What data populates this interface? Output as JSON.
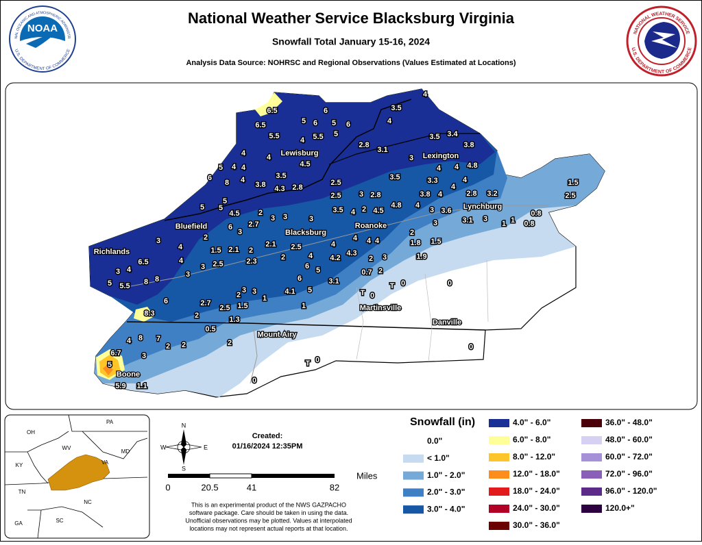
{
  "header": {
    "title": "National Weather Service Blacksburg Virginia",
    "subtitle": "Snowfall Total January 15-16, 2024",
    "source": "Analysis Data Source: NOHRSC and Regional Observations (Values Estimated at Locations)"
  },
  "logos": {
    "noaa": {
      "name": "NOAA",
      "ring_top": "NATIONAL OCEANIC AND ATMOSPHERIC ADMINISTRATION",
      "ring_bottom": "U.S. DEPARTMENT OF COMMERCE"
    },
    "nws": {
      "ring_top": "NATIONAL WEATHER SERVICE",
      "ring_bottom": "U.S. DEPARTMENT OF COMMERCE"
    }
  },
  "map": {
    "cities": [
      "Lewisburg",
      "Lexington",
      "Lynchburg",
      "Bluefield",
      "Blacksburg",
      "Roanoke",
      "Richlands",
      "Martinsville",
      "Danville",
      "Mount Airy",
      "Boone"
    ],
    "station_values": [
      "6.5",
      "6.5",
      "6",
      "5",
      "6",
      "5",
      "6",
      "3.5",
      "4",
      "4",
      "5.5",
      "4",
      "5.5",
      "5",
      "4",
      "4",
      "4.5",
      "2.8",
      "3.1",
      "3",
      "3.5",
      "3.4",
      "3.8",
      "5",
      "4",
      "4",
      "6",
      "8",
      "4",
      "3.5",
      "3.8",
      "4.3",
      "2.8",
      "2.5",
      "3.5",
      "3.3",
      "4",
      "4",
      "4.8",
      "4",
      "4",
      "2.8",
      "3.2",
      "1.5",
      "2.5",
      "2.5",
      "3",
      "2.8",
      "3.8",
      "4",
      "5",
      "5",
      "5",
      "4.5",
      "2",
      "3",
      "3",
      "3",
      "3.5",
      "4",
      "2",
      "4.5",
      "4.8",
      "4",
      "3",
      "3.6",
      "0.8",
      "3.1",
      "3",
      "1",
      "1",
      "0.8",
      "6",
      "2.7",
      "3",
      "3",
      "3",
      "2",
      "1.5",
      "2.1",
      "2",
      "2.1",
      "2.5",
      "4",
      "4",
      "4",
      "4",
      "2",
      "1.8",
      "1.5",
      "4",
      "4",
      "6.5",
      "4",
      "3",
      "2.5",
      "2.3",
      "2",
      "4",
      "4.2",
      "4.3",
      "2",
      "3",
      "1.9",
      "3",
      "6",
      "5",
      "0.7",
      "2",
      "5",
      "5.5",
      "8",
      "8",
      "3",
      "6",
      "3.1",
      "T",
      "0",
      "0",
      "3",
      "3",
      "4.1",
      "5",
      "2",
      "1",
      "T",
      "0",
      "6",
      "2.7",
      "2.5",
      "1.5",
      "1",
      "8.3",
      "2",
      "1.3",
      "0.5",
      "4",
      "8",
      "7",
      "2",
      "2",
      "2",
      "0",
      "6.7",
      "3",
      "5",
      "T",
      "0",
      "0",
      "5.9",
      "1.1"
    ]
  },
  "legend": {
    "title": "Snowfall (in)",
    "items": [
      {
        "label": "0.0\"",
        "color": "#ffffff"
      },
      {
        "label": "< 1.0\"",
        "color": "#c6dbef"
      },
      {
        "label": "1.0\" - 2.0\"",
        "color": "#74a9d8"
      },
      {
        "label": "2.0\" - 3.0\"",
        "color": "#3f80c4"
      },
      {
        "label": "3.0\" - 4.0\"",
        "color": "#1658a6"
      },
      {
        "label": "4.0\" - 6.0\"",
        "color": "#1a2f96"
      },
      {
        "label": "6.0\" - 8.0\"",
        "color": "#ffff99"
      },
      {
        "label": "8.0\" - 12.0\"",
        "color": "#fec52a"
      },
      {
        "label": "12.0\" - 18.0\"",
        "color": "#fd8d1c"
      },
      {
        "label": "18.0\" - 24.0\"",
        "color": "#e31a1c"
      },
      {
        "label": "24.0\" - 30.0\"",
        "color": "#b10026"
      },
      {
        "label": "30.0\" - 36.0\"",
        "color": "#6b0000"
      },
      {
        "label": "36.0\" - 48.0\"",
        "color": "#4a0008"
      },
      {
        "label": "48.0\" - 60.0\"",
        "color": "#d6d0f2"
      },
      {
        "label": "60.0\" - 72.0\"",
        "color": "#a690d8"
      },
      {
        "label": "72.0\" - 96.0\"",
        "color": "#8a5fb7"
      },
      {
        "label": "96.0\" - 120.0\"",
        "color": "#5c2a88"
      },
      {
        "label": "120.0+\"",
        "color": "#2d0040"
      }
    ]
  },
  "created": {
    "label": "Created:",
    "datetime": "01/16/2024 12:35PM"
  },
  "compass": {
    "n": "N",
    "s": "S",
    "e": "E",
    "w": "W"
  },
  "scale": {
    "ticks": [
      "0",
      "20.5",
      "41",
      "82"
    ],
    "unit": "Miles"
  },
  "disclaimer": [
    "This is an experimental product of the NWS GAZPACHO",
    "software package. Care should be taken in using the data.",
    "Unofficial observations may be plotted. Values at interpolated",
    "locations may not represent actual reports at that location."
  ],
  "inset": {
    "states": [
      "OH",
      "PA",
      "WV",
      "MD",
      "KY",
      "VA",
      "TN",
      "NC",
      "SC",
      "GA"
    ]
  }
}
